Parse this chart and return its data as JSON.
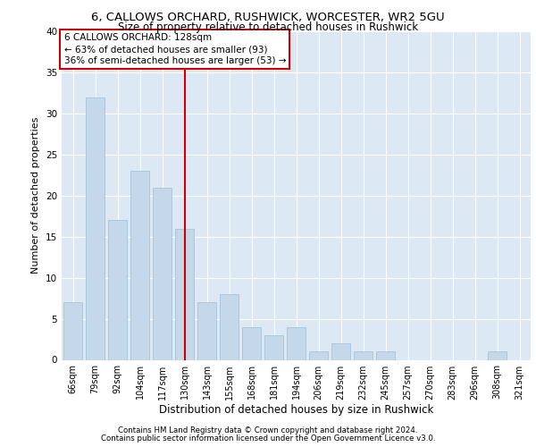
{
  "title1": "6, CALLOWS ORCHARD, RUSHWICK, WORCESTER, WR2 5GU",
  "title2": "Size of property relative to detached houses in Rushwick",
  "xlabel": "Distribution of detached houses by size in Rushwick",
  "ylabel": "Number of detached properties",
  "categories": [
    "66sqm",
    "79sqm",
    "92sqm",
    "104sqm",
    "117sqm",
    "130sqm",
    "143sqm",
    "155sqm",
    "168sqm",
    "181sqm",
    "194sqm",
    "206sqm",
    "219sqm",
    "232sqm",
    "245sqm",
    "257sqm",
    "270sqm",
    "283sqm",
    "296sqm",
    "308sqm",
    "321sqm"
  ],
  "values": [
    7,
    32,
    17,
    23,
    21,
    16,
    7,
    8,
    4,
    3,
    4,
    1,
    2,
    1,
    1,
    0,
    0,
    0,
    0,
    1,
    0
  ],
  "bar_color": "#c5d8ea",
  "bar_edge_color": "#a8c4d8",
  "vline_x_idx": 5,
  "vline_color": "#cc0000",
  "annotation_line1": "6 CALLOWS ORCHARD: 128sqm",
  "annotation_line2": "← 63% of detached houses are smaller (93)",
  "annotation_line3": "36% of semi-detached houses are larger (53) →",
  "annotation_box_color": "#cc0000",
  "annotation_bg": "#ffffff",
  "ylim": [
    0,
    40
  ],
  "yticks": [
    0,
    5,
    10,
    15,
    20,
    25,
    30,
    35,
    40
  ],
  "footer1": "Contains HM Land Registry data © Crown copyright and database right 2024.",
  "footer2": "Contains public sector information licensed under the Open Government Licence v3.0.",
  "plot_bg_color": "#dce9f5"
}
